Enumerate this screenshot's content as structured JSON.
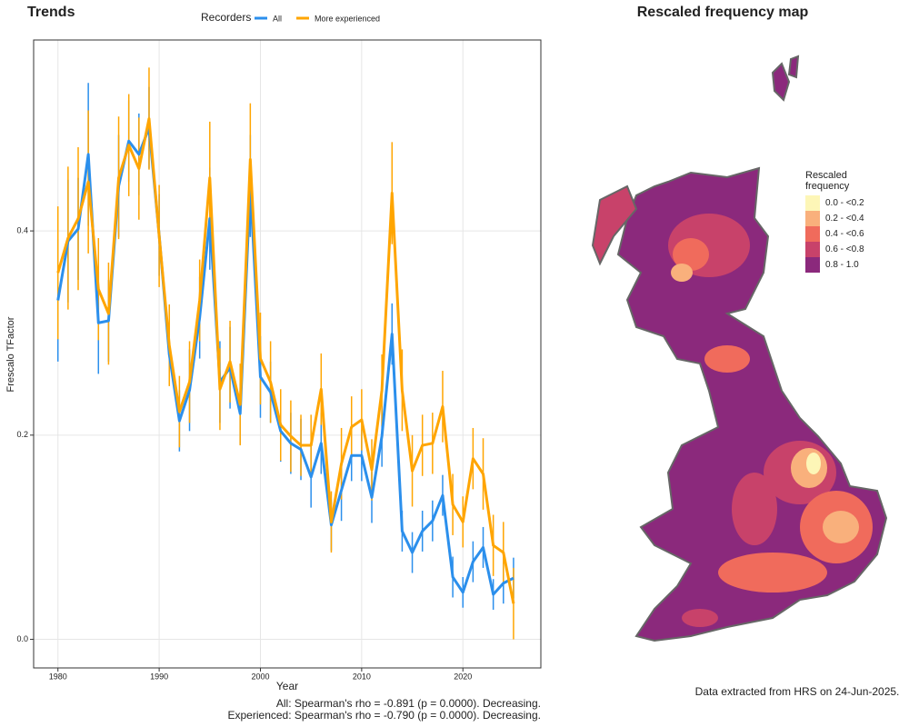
{
  "chart_data": {
    "type": "line",
    "title": "Trends",
    "legend_title": "Recorders",
    "xlabel": "Year",
    "ylabel": "Frescalo TFactor",
    "x": [
      1980,
      1981,
      1982,
      1983,
      1984,
      1985,
      1986,
      1987,
      1988,
      1989,
      1990,
      1991,
      1992,
      1993,
      1994,
      1995,
      1996,
      1997,
      1998,
      1999,
      2000,
      2001,
      2002,
      2003,
      2004,
      2005,
      2006,
      2007,
      2008,
      2009,
      2010,
      2011,
      2012,
      2013,
      2014,
      2015,
      2016,
      2017,
      2018,
      2019,
      2020,
      2021,
      2022,
      2023,
      2024,
      2025
    ],
    "series": [
      {
        "name": "All",
        "color": "#2b8fec",
        "values": [
          0.332,
          0.39,
          0.402,
          0.475,
          0.31,
          0.312,
          0.444,
          0.488,
          0.475,
          0.501,
          0.396,
          0.279,
          0.214,
          0.244,
          0.315,
          0.412,
          0.252,
          0.266,
          0.221,
          0.444,
          0.257,
          0.242,
          0.204,
          0.192,
          0.186,
          0.159,
          0.192,
          0.112,
          0.146,
          0.18,
          0.18,
          0.139,
          0.199,
          0.299,
          0.106,
          0.085,
          0.106,
          0.116,
          0.141,
          0.061,
          0.046,
          0.076,
          0.09,
          0.044,
          0.055,
          0.06
        ],
        "errors": [
          0.06,
          0.06,
          0.05,
          0.07,
          0.05,
          0.04,
          0.05,
          0.04,
          0.04,
          0.04,
          0.04,
          0.03,
          0.03,
          0.04,
          0.04,
          0.05,
          0.04,
          0.04,
          0.03,
          0.05,
          0.04,
          0.03,
          0.03,
          0.03,
          0.03,
          0.03,
          0.03,
          0.025,
          0.03,
          0.025,
          0.025,
          0.025,
          0.03,
          0.03,
          0.02,
          0.02,
          0.02,
          0.02,
          0.02,
          0.02,
          0.015,
          0.02,
          0.02,
          0.015,
          0.02,
          0.02
        ]
      },
      {
        "name": "More experienced",
        "color": "#ffa500",
        "values": [
          0.359,
          0.393,
          0.412,
          0.448,
          0.343,
          0.319,
          0.452,
          0.484,
          0.461,
          0.51,
          0.395,
          0.288,
          0.223,
          0.252,
          0.332,
          0.452,
          0.245,
          0.272,
          0.23,
          0.47,
          0.275,
          0.252,
          0.21,
          0.199,
          0.19,
          0.19,
          0.245,
          0.115,
          0.172,
          0.208,
          0.215,
          0.166,
          0.244,
          0.437,
          0.244,
          0.165,
          0.19,
          0.192,
          0.228,
          0.132,
          0.115,
          0.177,
          0.162,
          0.092,
          0.085,
          0.035
        ],
        "errors": [
          0.065,
          0.07,
          0.07,
          0.07,
          0.05,
          0.05,
          0.06,
          0.05,
          0.05,
          0.05,
          0.05,
          0.04,
          0.035,
          0.04,
          0.04,
          0.055,
          0.04,
          0.04,
          0.04,
          0.055,
          0.045,
          0.04,
          0.035,
          0.035,
          0.03,
          0.03,
          0.035,
          0.03,
          0.035,
          0.03,
          0.03,
          0.03,
          0.035,
          0.05,
          0.04,
          0.035,
          0.03,
          0.03,
          0.035,
          0.03,
          0.025,
          0.03,
          0.035,
          0.03,
          0.03,
          0.035
        ]
      }
    ],
    "xlim": [
      1977.6,
      2027.7
    ],
    "xticks": [
      1980,
      1990,
      2000,
      2010,
      2020
    ],
    "ylim": [
      -0.028,
      0.587
    ],
    "yticks": [
      {
        "value": 0,
        "label": "0.0"
      },
      0.2,
      0.4
    ],
    "grid": true,
    "annotations": [
      "All: Spearman's rho = -0.891 (p = 0.0000). Decreasing.",
      "Experienced: Spearman's rho = -0.790 (p = 0.0000). Decreasing."
    ]
  },
  "map": {
    "title": "Rescaled frequency map",
    "legend": {
      "title": "Rescaled frequency",
      "items": [
        {
          "label": "0.0 - <0.2",
          "color": "#fdf6b7"
        },
        {
          "label": "0.2 - <0.4",
          "color": "#f9b07c"
        },
        {
          "label": "0.4 - <0.6",
          "color": "#f06b5c"
        },
        {
          "label": "0.6 - <0.8",
          "color": "#c8426a"
        },
        {
          "label": "0.8 - 1.0",
          "color": "#8b297c"
        }
      ]
    },
    "note": "Data extracted from HRS on 24-Jun-2025."
  }
}
